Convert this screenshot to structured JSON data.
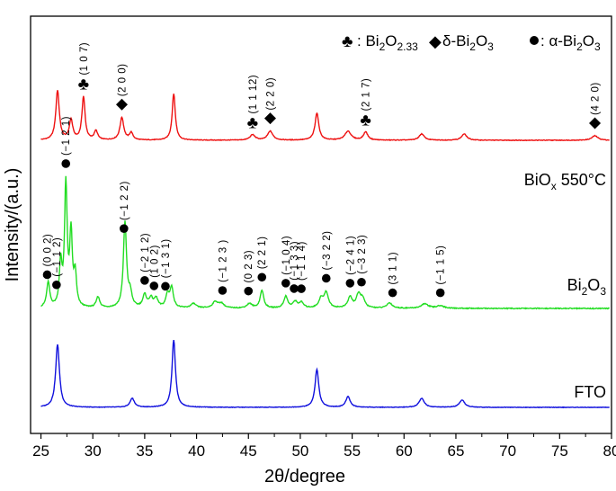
{
  "chart_data": {
    "type": "line",
    "xlabel": "2θ/degree",
    "ylabel": "Intensity/(a.u.)",
    "xlim": [
      24,
      80
    ],
    "x_ticks": [
      "25",
      "30",
      "35",
      "40",
      "45",
      "50",
      "55",
      "60",
      "65",
      "70",
      "75",
      "80"
    ],
    "y_ticks": "none",
    "legend": {
      "club_prefix": ": Bi",
      "club_sub": "2",
      "club_mid": "O",
      "club_sub2": "2.33",
      "delta_text": " δ-Bi",
      "delta_sub": "2",
      "delta_mid": "O",
      "delta_sub2": "3",
      "alpha_text": ": α-Bi",
      "alpha_sub": "2",
      "alpha_mid": "O",
      "alpha_sub2": "3"
    },
    "series": [
      {
        "name": "BiOx 550°C",
        "label_main": "BiO",
        "label_sub": "x",
        "label_tail": " 550°C",
        "color": "#ee1111",
        "baseline": 5,
        "noise": 0.35,
        "peaks": [
          [
            26.6,
            55,
            0.2
          ],
          [
            27.9,
            22,
            0.2
          ],
          [
            29.1,
            48,
            0.18
          ],
          [
            30.3,
            10,
            0.2
          ],
          [
            32.8,
            25,
            0.22
          ],
          [
            33.7,
            8,
            0.2
          ],
          [
            37.8,
            52,
            0.18
          ],
          [
            45.4,
            6,
            0.3
          ],
          [
            47.1,
            10,
            0.3
          ],
          [
            51.6,
            30,
            0.22
          ],
          [
            54.6,
            10,
            0.35
          ],
          [
            56.3,
            9,
            0.25
          ],
          [
            61.7,
            7,
            0.3
          ],
          [
            65.8,
            7,
            0.3
          ],
          [
            78.4,
            5,
            0.35
          ]
        ]
      },
      {
        "name": "Bi2O3",
        "label_main": "Bi",
        "label_sub": "2",
        "label_tail": "O",
        "label_sub2": "3",
        "color": "#22dd22",
        "baseline": 3,
        "noise": 0.5,
        "peaks": [
          [
            25.7,
            28,
            0.18
          ],
          [
            26.9,
            48,
            0.15
          ],
          [
            27.4,
            135,
            0.15
          ],
          [
            27.9,
            80,
            0.15
          ],
          [
            28.3,
            35,
            0.15
          ],
          [
            30.5,
            12,
            0.2
          ],
          [
            33.1,
            95,
            0.18
          ],
          [
            33.6,
            15,
            0.2
          ],
          [
            35.0,
            14,
            0.22
          ],
          [
            35.6,
            10,
            0.22
          ],
          [
            36.1,
            10,
            0.22
          ],
          [
            37.2,
            14,
            0.2
          ],
          [
            37.6,
            22,
            0.2
          ],
          [
            39.7,
            5,
            0.3
          ],
          [
            41.8,
            7,
            0.3
          ],
          [
            42.4,
            5,
            0.3
          ],
          [
            45.1,
            5,
            0.3
          ],
          [
            46.3,
            20,
            0.2
          ],
          [
            48.6,
            13,
            0.22
          ],
          [
            49.5,
            7,
            0.25
          ],
          [
            50.1,
            6,
            0.25
          ],
          [
            52.0,
            10,
            0.25
          ],
          [
            52.5,
            17,
            0.25
          ],
          [
            54.8,
            12,
            0.25
          ],
          [
            55.6,
            14,
            0.25
          ],
          [
            56.0,
            10,
            0.25
          ],
          [
            58.6,
            6,
            0.3
          ],
          [
            62.0,
            5,
            0.4
          ],
          [
            63.5,
            3,
            0.4
          ]
        ]
      },
      {
        "name": "FTO",
        "label_main": "FTO",
        "color": "#1111dd",
        "baseline": 3,
        "noise": 0.3,
        "peaks": [
          [
            26.6,
            70,
            0.22
          ],
          [
            33.8,
            10,
            0.25
          ],
          [
            37.8,
            75,
            0.2
          ],
          [
            51.6,
            42,
            0.22
          ],
          [
            54.6,
            12,
            0.25
          ],
          [
            61.7,
            10,
            0.3
          ],
          [
            65.6,
            8,
            0.3
          ]
        ]
      }
    ],
    "annotations": [
      {
        "text": "(1 0 7)",
        "marker": "club",
        "x": 29.1,
        "series": 0
      },
      {
        "text": "(2 0 0)",
        "marker": "diamond",
        "x": 32.8,
        "series": 0
      },
      {
        "text": "(1 1 12)",
        "marker": "club",
        "x": 45.4,
        "series": 0
      },
      {
        "text": "(2 2 0)",
        "marker": "diamond",
        "x": 47.1,
        "series": 0
      },
      {
        "text": "(2 1 7)",
        "marker": "club",
        "x": 56.3,
        "series": 0
      },
      {
        "text": "(4 2 0)",
        "marker": "diamond",
        "x": 78.4,
        "series": 0
      },
      {
        "text": "(0 0 2)",
        "marker": "dot",
        "x": 25.6,
        "series": 1
      },
      {
        "text": "(−1 1 2)",
        "marker": "dot",
        "x": 26.5,
        "series": 1
      },
      {
        "text": "(−1 2 1)",
        "marker": "dot",
        "x": 27.4,
        "series": 1
      },
      {
        "text": "(−1 2 2)",
        "marker": "dot",
        "x": 33.0,
        "series": 1
      },
      {
        "text": "(−2 1 2)",
        "marker": "dot",
        "x": 35.0,
        "series": 1
      },
      {
        "text": "(1 0 2)",
        "marker": "dot",
        "x": 35.9,
        "series": 1
      },
      {
        "text": "(−1 3 1)",
        "marker": "dot",
        "x": 37.0,
        "series": 1
      },
      {
        "text": "(−1 2 3 )",
        "marker": "dot",
        "x": 42.5,
        "series": 1
      },
      {
        "text": "(0 2 3)",
        "marker": "dot",
        "x": 45.0,
        "series": 1
      },
      {
        "text": "(2 2 1)",
        "marker": "dot",
        "x": 46.3,
        "series": 1
      },
      {
        "text": "(−1 0 4)",
        "marker": "dot",
        "x": 48.6,
        "series": 1
      },
      {
        "text": "(−1 3 3)",
        "marker": "dot",
        "x": 49.4,
        "series": 1
      },
      {
        "text": "(−1 1 4)",
        "marker": "dot",
        "x": 50.1,
        "series": 1
      },
      {
        "text": "(−3 2 2)",
        "marker": "dot",
        "x": 52.5,
        "series": 1
      },
      {
        "text": "(−2 4 1)",
        "marker": "dot",
        "x": 54.8,
        "series": 1
      },
      {
        "text": "(−3 2 3)",
        "marker": "dot",
        "x": 55.9,
        "series": 1
      },
      {
        "text": "(3 1 1)",
        "marker": "dot",
        "x": 58.9,
        "series": 1
      },
      {
        "text": "(−1 1 5)",
        "marker": "dot",
        "x": 63.5,
        "series": 1
      }
    ]
  }
}
